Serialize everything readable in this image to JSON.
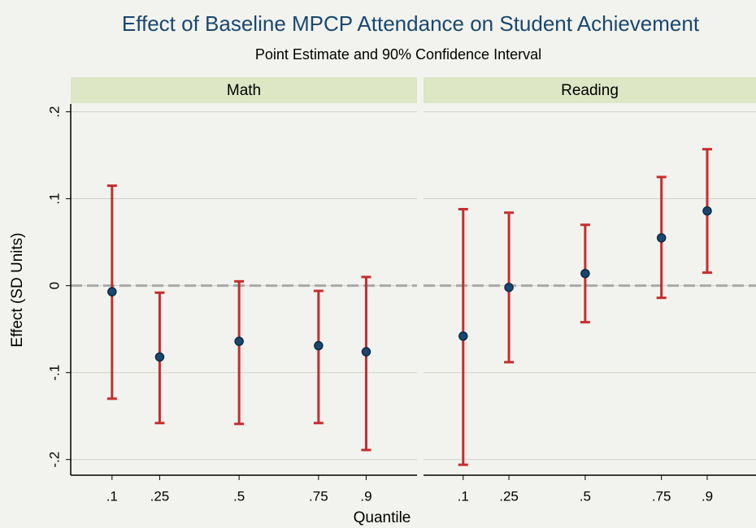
{
  "title": "Effect of Baseline MPCP Attendance on Student Achievement",
  "subtitle": "Point Estimate and 90% Confidence Interval",
  "xlabel": "Quantile",
  "ylabel": "Effect (SD Units)",
  "chart_data": [
    {
      "type": "errorbar",
      "panel_title": "Math",
      "x": [
        0.1,
        0.25,
        0.5,
        0.75,
        0.9
      ],
      "values": [
        -0.007,
        -0.082,
        -0.064,
        -0.069,
        -0.076
      ],
      "lower": [
        -0.13,
        -0.158,
        -0.159,
        -0.158,
        -0.189
      ],
      "upper": [
        0.115,
        -0.008,
        0.005,
        -0.006,
        0.01
      ],
      "marker_color": "#1a476f",
      "ci_color": "#c62d2d",
      "refline": 0,
      "xlim": [
        -0.03,
        1.06
      ],
      "xticks": [
        {
          "value": 0.1,
          "label": ".1"
        },
        {
          "value": 0.25,
          "label": ".25"
        },
        {
          "value": 0.5,
          "label": ".5"
        },
        {
          "value": 0.75,
          "label": ".75"
        },
        {
          "value": 0.9,
          "label": ".9"
        }
      ],
      "ylim": [
        -0.218,
        0.209
      ],
      "yticks": [
        {
          "value": -0.2,
          "label": "-.2"
        },
        {
          "value": -0.1,
          "label": "-.1"
        },
        0,
        {
          "value": 0.1,
          "label": ".1"
        },
        {
          "value": 0.2,
          "label": ".2"
        }
      ],
      "grid": true,
      "show_yaxis": true
    },
    {
      "type": "errorbar",
      "panel_title": "Reading",
      "x": [
        0.1,
        0.25,
        0.5,
        0.75,
        0.9
      ],
      "values": [
        -0.058,
        -0.002,
        0.014,
        0.055,
        0.086
      ],
      "lower": [
        -0.206,
        -0.088,
        -0.042,
        -0.014,
        0.015
      ],
      "upper": [
        0.088,
        0.084,
        0.07,
        0.125,
        0.157
      ],
      "marker_color": "#1a476f",
      "ci_color": "#c62d2d",
      "refline": 0,
      "xlim": [
        -0.03,
        1.06
      ],
      "xticks": [
        {
          "value": 0.1,
          "label": ".1"
        },
        {
          "value": 0.25,
          "label": ".25"
        },
        {
          "value": 0.5,
          "label": ".5"
        },
        {
          "value": 0.75,
          "label": ".75"
        },
        {
          "value": 0.9,
          "label": ".9"
        }
      ],
      "ylim": [
        -0.218,
        0.209
      ],
      "yticks": [
        {
          "value": -0.2,
          "label": "-.2"
        },
        {
          "value": -0.1,
          "label": "-.1"
        },
        0,
        {
          "value": 0.1,
          "label": ".1"
        },
        {
          "value": 0.2,
          "label": ".2"
        }
      ],
      "grid": true,
      "show_yaxis": false
    }
  ]
}
